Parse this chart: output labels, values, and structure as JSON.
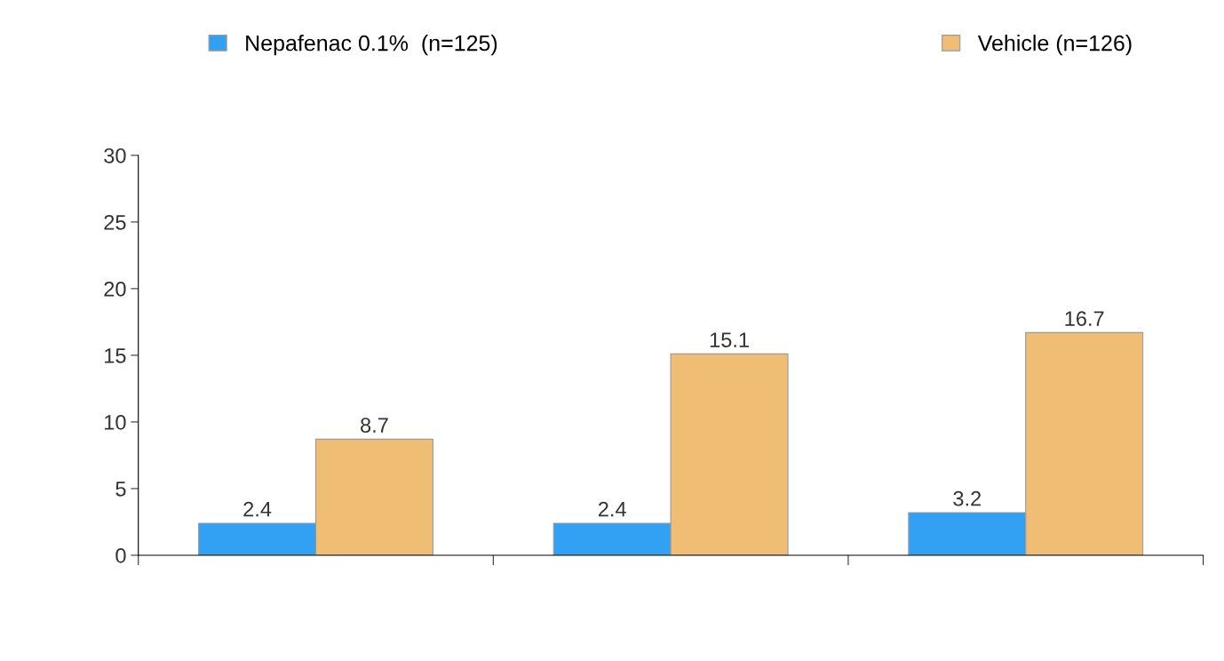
{
  "chart_data": {
    "type": "bar",
    "categories": [
      null,
      null,
      null
    ],
    "series": [
      {
        "name": "Nepafenac 0.1%  (n=125)",
        "color": "#33a1f3",
        "values": [
          2.4,
          2.4,
          3.2
        ]
      },
      {
        "name": "Vehicle (n=126)",
        "color": "#f0bd74",
        "values": [
          8.7,
          15.1,
          16.7
        ]
      }
    ],
    "ylim": [
      0,
      30
    ],
    "yticks": [
      0,
      5,
      10,
      15,
      20,
      25,
      30
    ],
    "data_labels": true,
    "legend": "top",
    "grid": false
  }
}
